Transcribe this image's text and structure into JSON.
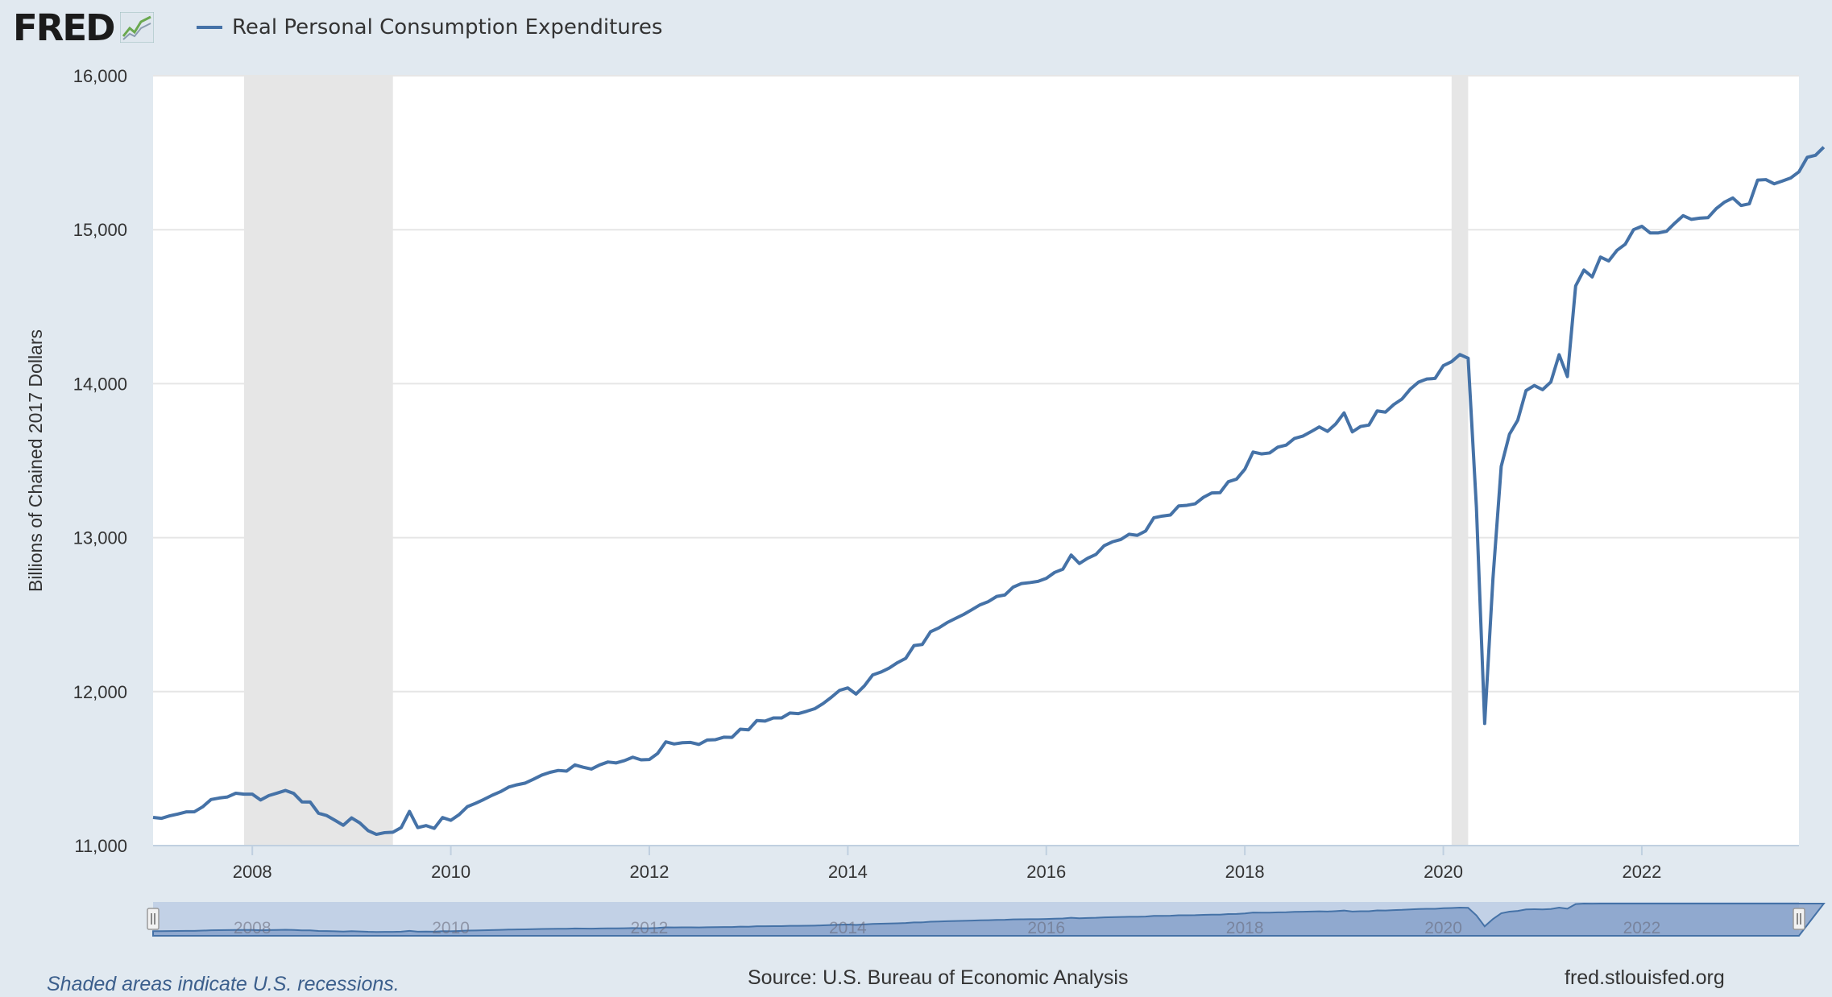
{
  "header": {
    "logo_text": "FRED",
    "logo_icon": "chart-line-icon",
    "legend_label": "Real Personal Consumption Expenditures"
  },
  "footer": {
    "recession_note": "Shaded areas indicate U.S. recessions.",
    "source": "Source: U.S. Bureau of Economic Analysis",
    "url": "fred.stlouisfed.org"
  },
  "colors": {
    "series": "#4572a7",
    "recession": "#e6e6e6",
    "background": "#e1e9f0",
    "plot": "#ffffff",
    "navigator_fill": "#c2d1e6",
    "navigator_area": "#7f9bc7"
  },
  "chart_data": {
    "type": "line",
    "title": "",
    "xlabel": "",
    "ylabel": "Billions of Chained 2017 Dollars",
    "ylim": [
      11000,
      16000
    ],
    "yticks": [
      11000,
      12000,
      13000,
      14000,
      15000,
      16000
    ],
    "ytick_labels": [
      "11,000",
      "12,000",
      "13,000",
      "14,000",
      "15,000",
      "16,000"
    ],
    "xlim": [
      "2007-01",
      "2023-08"
    ],
    "xticks": [
      "2008",
      "2010",
      "2012",
      "2014",
      "2016",
      "2018",
      "2020",
      "2022"
    ],
    "grid": "horizontal",
    "legend": "top-left",
    "recessions": [
      {
        "start": "2007-12",
        "end": "2009-06"
      },
      {
        "start": "2020-02",
        "end": "2020-04"
      }
    ],
    "series": [
      {
        "name": "Real Personal Consumption Expenditures",
        "start": "2007-01",
        "frequency": "monthly",
        "values": [
          11183,
          11177,
          11193,
          11205,
          11219,
          11220,
          11252,
          11299,
          11309,
          11316,
          11340,
          11334,
          11334,
          11296,
          11325,
          11341,
          11358,
          11339,
          11284,
          11283,
          11210,
          11195,
          11164,
          11132,
          11180,
          11147,
          11097,
          11073,
          11084,
          11087,
          11117,
          11222,
          11117,
          11130,
          11112,
          11182,
          11164,
          11201,
          11253,
          11275,
          11300,
          11327,
          11350,
          11380,
          11395,
          11406,
          11431,
          11458,
          11476,
          11488,
          11484,
          11524,
          11509,
          11497,
          11524,
          11543,
          11537,
          11552,
          11574,
          11557,
          11559,
          11598,
          11674,
          11660,
          11668,
          11670,
          11657,
          11686,
          11688,
          11704,
          11703,
          11756,
          11752,
          11812,
          11809,
          11829,
          11829,
          11861,
          11857,
          11872,
          11889,
          11922,
          11963,
          12008,
          12024,
          11984,
          12037,
          12108,
          12127,
          12153,
          12188,
          12216,
          12299,
          12306,
          12389,
          12414,
          12448,
          12475,
          12501,
          12532,
          12564,
          12585,
          12618,
          12628,
          12679,
          12702,
          12708,
          12716,
          12736,
          12774,
          12795,
          12887,
          12832,
          12866,
          12891,
          12948,
          12973,
          12988,
          13022,
          13015,
          13043,
          13129,
          13140,
          13147,
          13206,
          13210,
          13220,
          13262,
          13290,
          13292,
          13363,
          13380,
          13444,
          13556,
          13544,
          13550,
          13588,
          13601,
          13644,
          13659,
          13688,
          13719,
          13690,
          13739,
          13810,
          13687,
          13722,
          13731,
          13823,
          13815,
          13864,
          13900,
          13964,
          14010,
          14030,
          14034,
          14117,
          14143,
          14189,
          14165,
          13198,
          11793,
          12734,
          13463,
          13672,
          13763,
          13955,
          13988,
          13961,
          14011,
          14188,
          14046,
          14635,
          14738,
          14693,
          14822,
          14797,
          14866,
          14906,
          15000,
          15022,
          14979,
          14979,
          14990,
          15043,
          15091,
          15067,
          15075,
          15078,
          15137,
          15179,
          15206,
          15157,
          15168,
          15322,
          15325,
          15298,
          15316,
          15336,
          15376,
          15470,
          15483,
          15536
        ]
      }
    ],
    "navigator": {
      "xticks": [
        "2008",
        "2010",
        "2012",
        "2014",
        "2016",
        "2018",
        "2020",
        "2022"
      ]
    }
  }
}
